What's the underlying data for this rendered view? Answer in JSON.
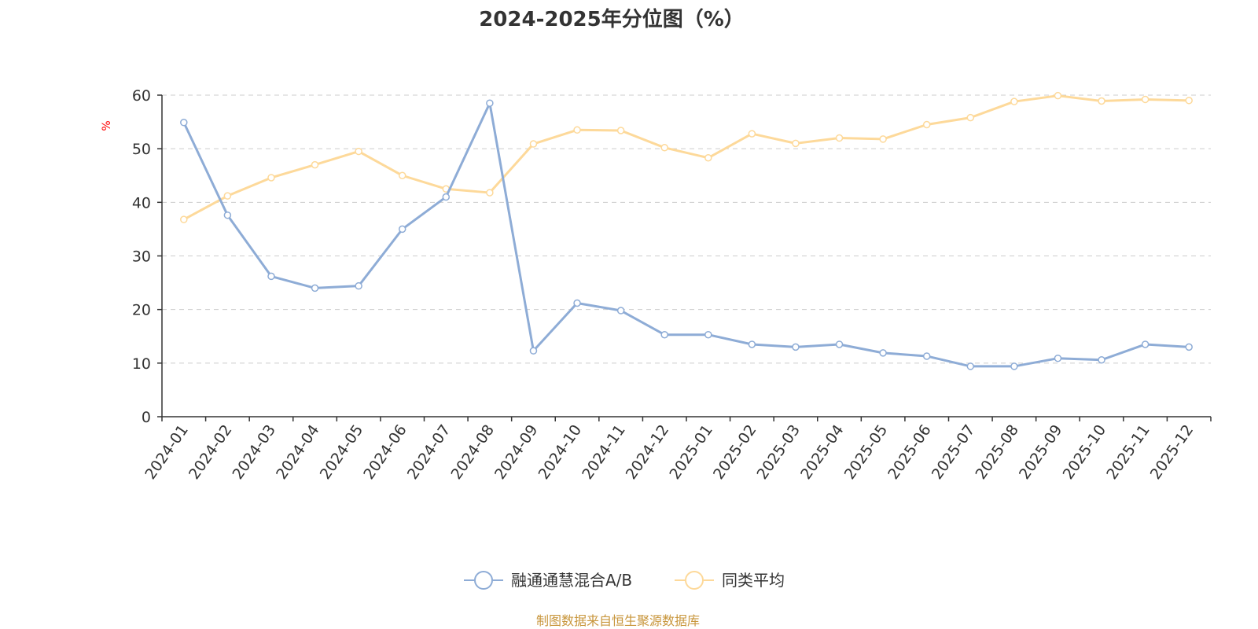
{
  "chart_data": {
    "type": "line",
    "title": "2024-2025年分位图（%）",
    "ylabel": "%",
    "xlabel": "",
    "ylim": [
      0,
      60
    ],
    "yticks": [
      0,
      10,
      20,
      30,
      40,
      50,
      60
    ],
    "grid": true,
    "legend_position": "bottom",
    "categories": [
      "2024-01",
      "2024-02",
      "2024-03",
      "2024-04",
      "2024-05",
      "2024-06",
      "2024-07",
      "2024-08",
      "2024-09",
      "2024-10",
      "2024-11",
      "2024-12",
      "2025-01",
      "2025-02",
      "2025-03",
      "2025-04",
      "2025-05",
      "2025-06",
      "2025-07",
      "2025-08",
      "2025-09",
      "2025-10",
      "2025-11",
      "2025-12"
    ],
    "series": [
      {
        "name": "融通通慧混合A/B",
        "color": "#8eacd6",
        "values": [
          54.9,
          37.6,
          26.2,
          24.0,
          24.4,
          35.0,
          41.0,
          58.5,
          12.3,
          21.2,
          19.8,
          15.3,
          15.3,
          13.5,
          13.0,
          13.5,
          11.9,
          11.3,
          9.4,
          9.4,
          10.9,
          10.6,
          13.5,
          13.0
        ]
      },
      {
        "name": "同类平均",
        "color": "#fdd99a",
        "values": [
          36.8,
          41.2,
          44.6,
          47.0,
          49.5,
          45.0,
          42.5,
          41.8,
          50.9,
          53.5,
          53.4,
          50.2,
          48.3,
          52.8,
          51.0,
          52.0,
          51.8,
          54.5,
          55.8,
          58.8,
          59.9,
          58.9,
          59.2,
          59.0
        ]
      }
    ],
    "source_text": "制图数据来自恒生聚源数据库",
    "source_color": "#c8963c",
    "ylabel_color": "#ff0000"
  }
}
